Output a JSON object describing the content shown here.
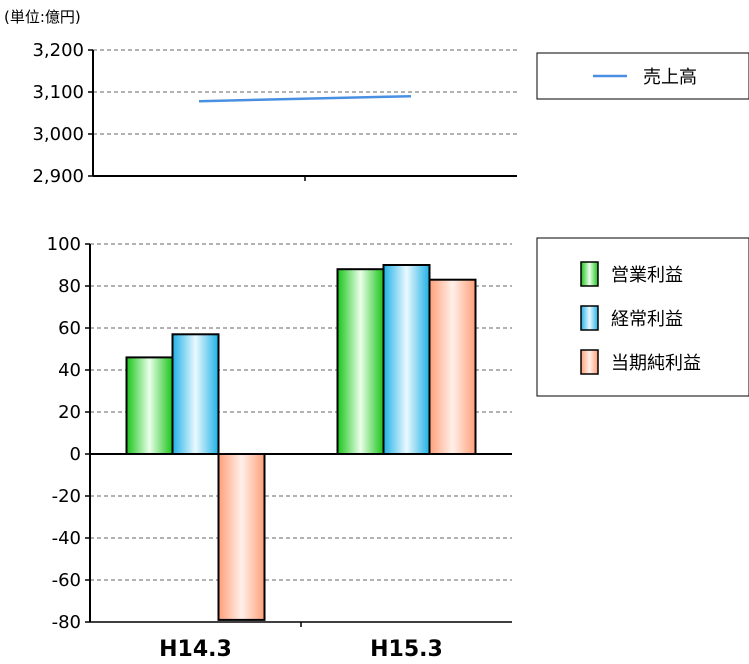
{
  "unit_label": "(単位:億円)",
  "chart_data": [
    {
      "type": "line",
      "categories": [
        "H14.3",
        "H15.3"
      ],
      "series": [
        {
          "name": "売上高",
          "values": [
            3078,
            3090
          ],
          "color": "#4a90e2"
        }
      ],
      "ylim": [
        2900,
        3200
      ],
      "yticks": [
        "2,900",
        "3,000",
        "3,100",
        "3,200"
      ],
      "grid": true,
      "legend": "right"
    },
    {
      "type": "bar",
      "categories": [
        "H14.3",
        "H15.3"
      ],
      "series": [
        {
          "name": "営業利益",
          "values": [
            46,
            88
          ],
          "color": "#3fe03f"
        },
        {
          "name": "経常利益",
          "values": [
            57,
            90
          ],
          "color": "#42c8ee"
        },
        {
          "name": "当期純利益",
          "values": [
            -79,
            83
          ],
          "color": "#ffb898"
        }
      ],
      "ylim": [
        -80,
        100
      ],
      "yticks": [
        "-80",
        "-60",
        "-40",
        "-20",
        "0",
        "20",
        "40",
        "60",
        "80",
        "100"
      ],
      "grid": true,
      "legend": "right"
    }
  ]
}
